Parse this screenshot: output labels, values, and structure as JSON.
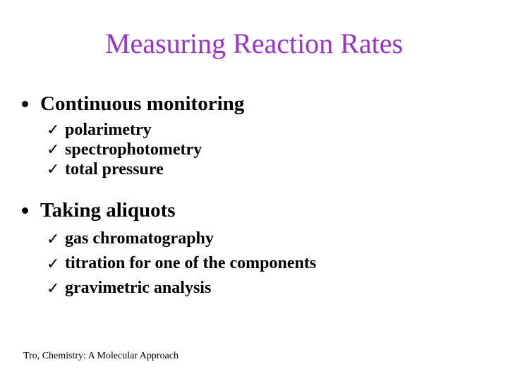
{
  "slide": {
    "title": "Measuring Reaction Rates",
    "title_color": "#9933CC",
    "text_color": "#000000",
    "background_color": "#FFFFFF",
    "sections": [
      {
        "label": "Continuous monitoring",
        "items": [
          "polarimetry",
          "spectrophotometry",
          "total pressure"
        ]
      },
      {
        "label": "Taking aliquots",
        "items": [
          "gas chromatography",
          "titration for one of the components",
          "gravimetric analysis"
        ]
      }
    ],
    "footer": "Tro, Chemistry: A Molecular Approach",
    "icons": {
      "check_glyph": "✓"
    }
  }
}
